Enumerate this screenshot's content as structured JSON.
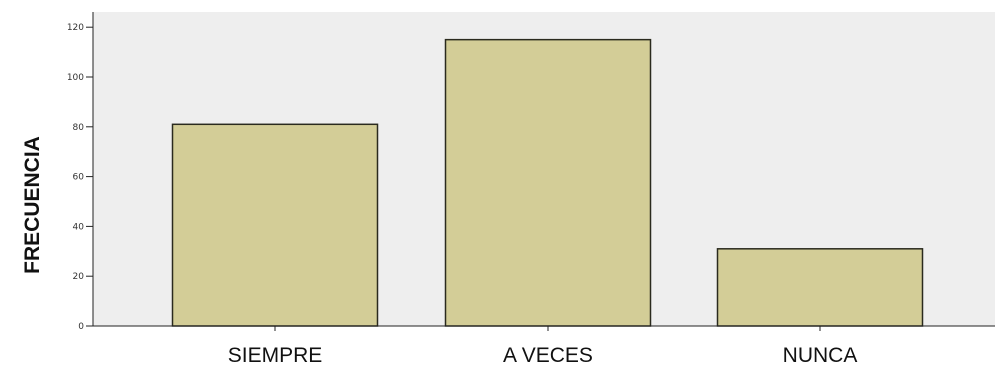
{
  "chart_data": {
    "type": "bar",
    "categories": [
      "SIEMPRE",
      "A VECES",
      "NUNCA"
    ],
    "values": [
      81,
      115,
      31
    ],
    "title": "",
    "xlabel": "",
    "ylabel": "FRECUENCIA",
    "ylim": [
      0,
      126
    ],
    "yticks": [
      0,
      20,
      40,
      60,
      80,
      100,
      120
    ],
    "grid": false,
    "legend": "none",
    "colors": {
      "bar_fill": "#d3cd97",
      "bar_stroke": "#2a2a1e",
      "plot_background": "#eeeeee",
      "axis": "#222222"
    }
  }
}
